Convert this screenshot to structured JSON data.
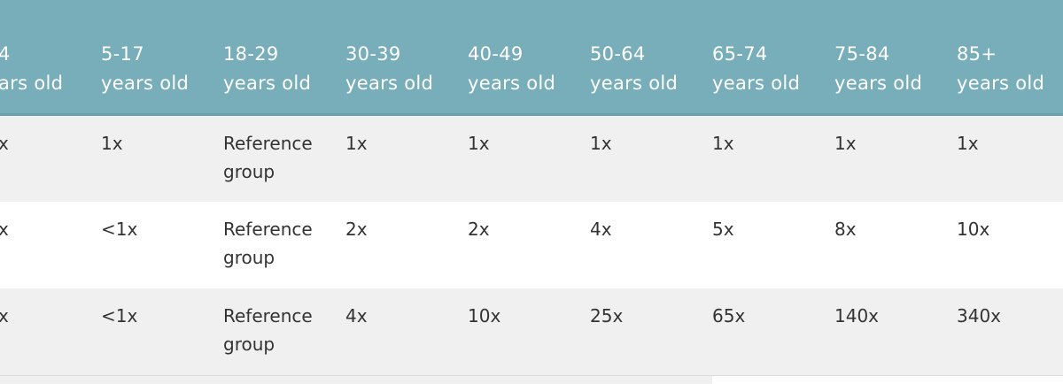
{
  "table": {
    "header": [
      [
        "4",
        "ars old"
      ],
      [
        "5-17",
        "years old"
      ],
      [
        "18-29",
        "years old"
      ],
      [
        "30-39",
        "years old"
      ],
      [
        "40-49",
        "years old"
      ],
      [
        "50-64",
        "years old"
      ],
      [
        "65-74",
        "years old"
      ],
      [
        "75-84",
        "years old"
      ],
      [
        "85+",
        "years old"
      ]
    ],
    "rows": [
      [
        "x",
        "1x",
        "Reference group",
        "1x",
        "1x",
        "1x",
        "1x",
        "1x",
        "1x"
      ],
      [
        "x",
        "<1x",
        "Reference group",
        "2x",
        "2x",
        "4x",
        "5x",
        "8x",
        "10x"
      ],
      [
        "x",
        "<1x",
        "Reference group",
        "4x",
        "10x",
        "25x",
        "65x",
        "140x",
        "340x"
      ]
    ]
  }
}
